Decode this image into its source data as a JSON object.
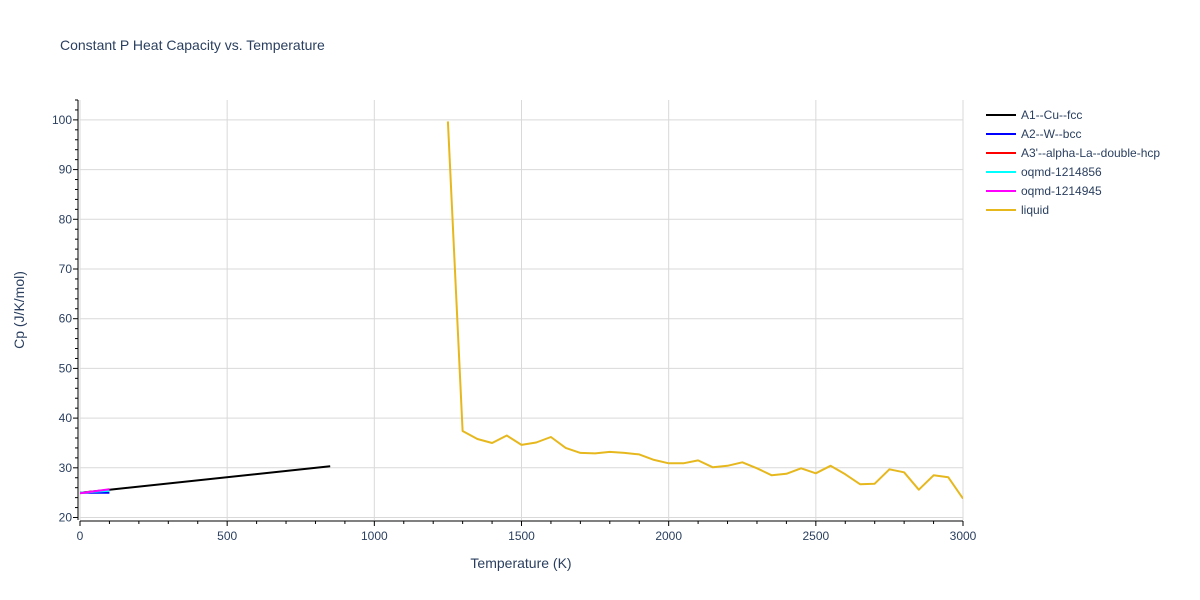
{
  "chart_data": {
    "type": "line",
    "title": "Constant P Heat Capacity vs. Temperature",
    "xlabel": "Temperature (K)",
    "ylabel": "Cp (J/K/mol)",
    "xlim": [
      0,
      3000
    ],
    "ylim": [
      19.5,
      104
    ],
    "xticks": [
      0,
      500,
      1000,
      1500,
      2000,
      2500,
      3000
    ],
    "yticks": [
      20,
      30,
      40,
      50,
      60,
      70,
      80,
      90,
      100
    ],
    "grid": true,
    "legend_position": "right",
    "series": [
      {
        "name": "A1--Cu--fcc",
        "color": "#000000",
        "x": [
          0,
          100,
          850
        ],
        "y": [
          25.0,
          25.6,
          30.3
        ]
      },
      {
        "name": "A2--W--bcc",
        "color": "#0000ff",
        "x": [
          0,
          100
        ],
        "y": [
          25.0,
          25.0
        ]
      },
      {
        "name": "A3'--alpha-La--double-hcp",
        "color": "#ff0000",
        "x": [
          0,
          100
        ],
        "y": [
          25.0,
          25.5
        ]
      },
      {
        "name": "oqmd-1214856",
        "color": "#00ffff",
        "x": [
          0,
          100
        ],
        "y": [
          25.0,
          25.4
        ]
      },
      {
        "name": "oqmd-1214945",
        "color": "#ff00ff",
        "x": [
          0,
          100
        ],
        "y": [
          24.9,
          25.7
        ]
      },
      {
        "name": "liquid",
        "color": "#e6b81e",
        "x": [
          1250,
          1300,
          1350,
          1400,
          1450,
          1500,
          1550,
          1600,
          1650,
          1700,
          1750,
          1800,
          1850,
          1900,
          1950,
          2000,
          2050,
          2100,
          2150,
          2200,
          2250,
          2300,
          2350,
          2400,
          2450,
          2500,
          2550,
          2600,
          2650,
          2700,
          2750,
          2800,
          2850,
          2900,
          2950,
          3000
        ],
        "y": [
          99.7,
          37.4,
          35.8,
          35.0,
          36.5,
          34.6,
          35.1,
          36.2,
          34.0,
          33.0,
          32.9,
          33.2,
          33.0,
          32.7,
          31.6,
          30.9,
          30.9,
          31.5,
          30.1,
          30.4,
          31.1,
          29.9,
          28.5,
          28.8,
          29.9,
          28.9,
          30.4,
          28.7,
          26.7,
          26.8,
          29.7,
          29.1,
          25.6,
          28.5,
          28.1,
          23.8
        ]
      }
    ]
  }
}
